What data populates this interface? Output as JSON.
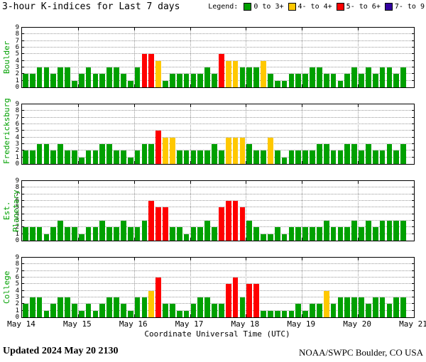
{
  "chart_data": {
    "type": "bar",
    "title": "3-hour K-indices for Last 7 days",
    "xlabel": "Coordinate Universal Time (UTC)",
    "x_ticks": [
      "May 14",
      "May 15",
      "May 16",
      "May 17",
      "May 18",
      "May 19",
      "May 20",
      "May 21"
    ],
    "y_ticks": [
      0,
      1,
      2,
      3,
      4,
      5,
      6,
      7,
      8,
      9
    ],
    "ylim": [
      0,
      9
    ],
    "bar_interval_hours": 3,
    "grid": "dotted",
    "legend": {
      "label": "Legend:",
      "items": [
        {
          "label": "0 to 3+",
          "color": "#00a000",
          "k_range": [
            0,
            3
          ]
        },
        {
          "label": "4- to 4+",
          "color": "#ffc800",
          "k_range": [
            4,
            4
          ]
        },
        {
          "label": "5- to 6+",
          "color": "#ff0000",
          "k_range": [
            5,
            6
          ]
        },
        {
          "label": "7- to 9",
          "color": "#3300a0",
          "k_range": [
            7,
            9
          ]
        }
      ]
    },
    "panels": [
      {
        "station": "Boulder",
        "values": [
          2,
          2,
          3,
          3,
          2,
          3,
          3,
          1,
          2,
          3,
          2,
          2,
          3,
          3,
          2,
          1,
          3,
          5,
          5,
          4,
          1,
          2,
          2,
          2,
          2,
          2,
          3,
          2,
          5,
          4,
          4,
          3,
          3,
          3,
          4,
          2,
          1,
          1,
          2,
          2,
          2,
          3,
          3,
          2,
          2,
          1,
          2,
          3,
          2,
          3,
          2,
          3,
          3,
          2,
          3
        ]
      },
      {
        "station": "Fredericksburg",
        "values": [
          2,
          2,
          3,
          3,
          2,
          3,
          2,
          2,
          1,
          2,
          2,
          3,
          3,
          2,
          2,
          1,
          2,
          3,
          3,
          5,
          4,
          4,
          2,
          2,
          2,
          2,
          2,
          3,
          2,
          4,
          4,
          4,
          3,
          2,
          2,
          4,
          2,
          1,
          2,
          2,
          2,
          2,
          3,
          3,
          2,
          2,
          3,
          3,
          2,
          3,
          2,
          2,
          3,
          2,
          3
        ]
      },
      {
        "station": "Est. Planetary",
        "values": [
          2,
          2,
          2,
          1,
          2,
          3,
          2,
          2,
          1,
          2,
          2,
          3,
          2,
          2,
          3,
          2,
          2,
          3,
          6,
          5,
          5,
          2,
          2,
          1,
          2,
          2,
          3,
          2,
          5,
          6,
          6,
          5,
          3,
          2,
          1,
          1,
          2,
          1,
          2,
          2,
          2,
          2,
          2,
          3,
          2,
          2,
          2,
          3,
          2,
          3,
          2,
          3,
          3,
          3,
          3
        ]
      },
      {
        "station": "College",
        "values": [
          2,
          3,
          3,
          1,
          2,
          3,
          3,
          2,
          1,
          2,
          1,
          2,
          3,
          3,
          2,
          1,
          3,
          3,
          4,
          6,
          2,
          2,
          1,
          1,
          2,
          3,
          3,
          2,
          2,
          5,
          6,
          3,
          5,
          5,
          1,
          1,
          1,
          1,
          1,
          2,
          1,
          2,
          2,
          4,
          2,
          3,
          3,
          3,
          3,
          2,
          3,
          3,
          2,
          3,
          3
        ]
      }
    ]
  },
  "footer": {
    "updated": "Updated 2024 May 20 2130",
    "credit": "NOAA/SWPC Boulder, CO USA"
  }
}
